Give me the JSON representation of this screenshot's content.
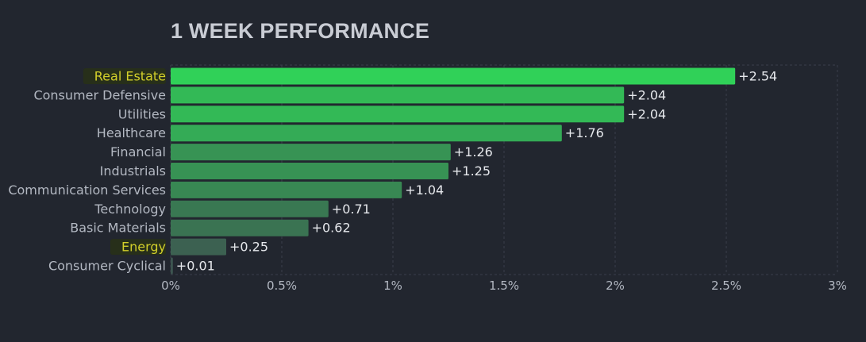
{
  "chart_data": {
    "type": "bar",
    "orientation": "horizontal",
    "title": "1 WEEK PERFORMANCE",
    "categories": [
      "Real Estate",
      "Consumer Defensive",
      "Utilities",
      "Healthcare",
      "Financial",
      "Industrials",
      "Communication Services",
      "Technology",
      "Basic Materials",
      "Energy",
      "Consumer Cyclical"
    ],
    "values": [
      2.54,
      2.04,
      2.04,
      1.76,
      1.26,
      1.25,
      1.04,
      0.71,
      0.62,
      0.25,
      0.01
    ],
    "value_labels": [
      "+2.54",
      "+2.04",
      "+2.04",
      "+1.76",
      "+1.26",
      "+1.25",
      "+1.04",
      "+0.71",
      "+0.62",
      "+0.25",
      "+0.01"
    ],
    "highlighted_categories": [
      "Real Estate",
      "Energy"
    ],
    "xlim": [
      0,
      3
    ],
    "x_ticks": [
      0,
      0.5,
      1,
      1.5,
      2,
      2.5,
      3
    ],
    "x_tick_labels": [
      "0%",
      "0.5%",
      "1%",
      "1.5%",
      "2%",
      "2.5%",
      "3%"
    ],
    "grid": "vertical dashed",
    "colors": {
      "background": "#22262f",
      "bar_high": "#30d158",
      "bar_low": "#3d5550",
      "label_text": "#b3b8c2",
      "highlight_text": "#d2cf2a",
      "highlight_bg": "#272f1a",
      "value_text": "#e6e8ec",
      "grid": "#3a3f4b"
    }
  }
}
